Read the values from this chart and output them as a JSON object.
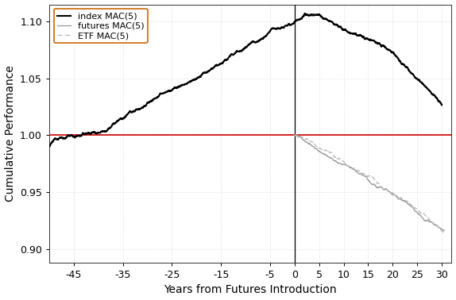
{
  "title": "",
  "xlabel": "Years from Futures Introduction",
  "ylabel": "Cumulative Performance",
  "xlim": [
    -50,
    32
  ],
  "ylim": [
    0.888,
    1.115
  ],
  "yticks": [
    0.9,
    0.95,
    1.0,
    1.05,
    1.1
  ],
  "xticks": [
    -45,
    -35,
    -25,
    -15,
    -5,
    0,
    5,
    10,
    15,
    20,
    25,
    30
  ],
  "hline_y": 1.0,
  "vline_x": 0.0,
  "hline_color": "#cc0000",
  "vline_color": "#000000",
  "background_color": "#ffffff",
  "grid_color": "#999999",
  "index_color": "#000000",
  "futures_color": "#999999",
  "etf_color": "#bbbbbb",
  "legend_edge_color": "#cc6600",
  "index_lw": 1.5,
  "futures_lw": 0.9,
  "etf_lw": 0.9,
  "font_size": 9
}
